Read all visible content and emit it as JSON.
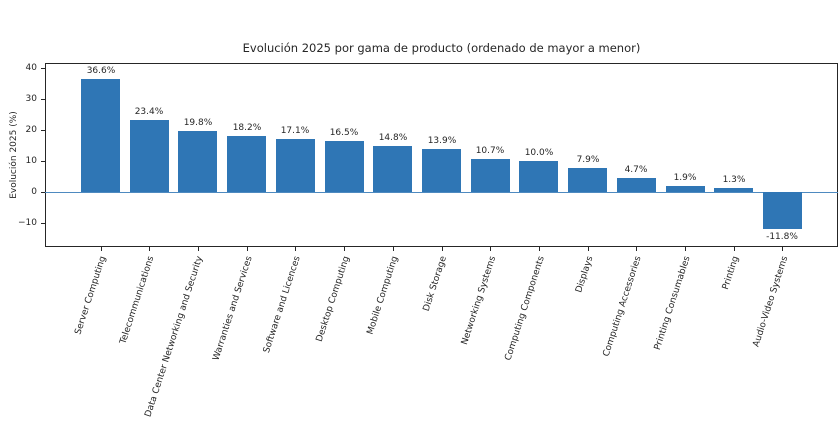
{
  "chart_data": {
    "type": "bar",
    "title": "Evolución 2025 por gama de producto (ordenado de mayor a menor)",
    "xlabel": "",
    "ylabel": "Evolución 2025 (%)",
    "categories": [
      "Server Computing",
      "Telecommunications",
      "Data Center Networking and Security",
      "Warranties and Services",
      "Software and Licences",
      "Desktop Computing",
      "Mobile Computing",
      "Disk Storage",
      "Networking Systems",
      "Computing Components",
      "Displays",
      "Computing Accessories",
      "Printing Consumables",
      "Printing",
      "Audio-Video Systems"
    ],
    "values": [
      36.6,
      23.4,
      19.8,
      18.2,
      17.1,
      16.5,
      14.8,
      13.9,
      10.7,
      10.0,
      7.9,
      4.7,
      1.9,
      1.3,
      -11.8
    ],
    "value_labels": [
      "36.6%",
      "23.4%",
      "19.8%",
      "18.2%",
      "17.1%",
      "16.5%",
      "14.8%",
      "13.9%",
      "10.7%",
      "10.0%",
      "7.9%",
      "4.7%",
      "1.9%",
      "1.3%",
      "-11.8%"
    ],
    "yticks": [
      40,
      30,
      20,
      10,
      0,
      -10
    ],
    "ytick_labels": [
      "40",
      "30",
      "20",
      "10",
      "0",
      "−10"
    ],
    "ylim": [
      -17.6,
      41.7
    ],
    "grid": false,
    "legend": "none",
    "bar_color": "#2f76b5",
    "zero_line_color": "#4e8ac0",
    "axis_color": "#262626",
    "background_color": "#ffffff"
  }
}
